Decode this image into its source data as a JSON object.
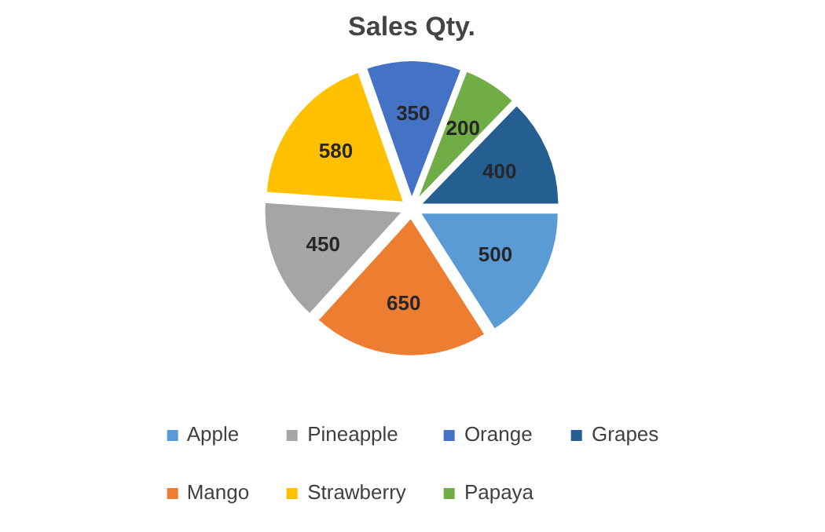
{
  "chart_data": {
    "type": "pie",
    "title": "Sales Qty.",
    "categories": [
      "Apple",
      "Mango",
      "Pineapple",
      "Strawberry",
      "Orange",
      "Papaya",
      "Grapes"
    ],
    "values": [
      500,
      650,
      450,
      580,
      350,
      200,
      400
    ],
    "colors": [
      "#5b9bd5",
      "#ed7d31",
      "#a5a5a5",
      "#ffc000",
      "#4472c4",
      "#70ad47",
      "#255e91"
    ],
    "data_labels": true,
    "legend": "bottom"
  }
}
